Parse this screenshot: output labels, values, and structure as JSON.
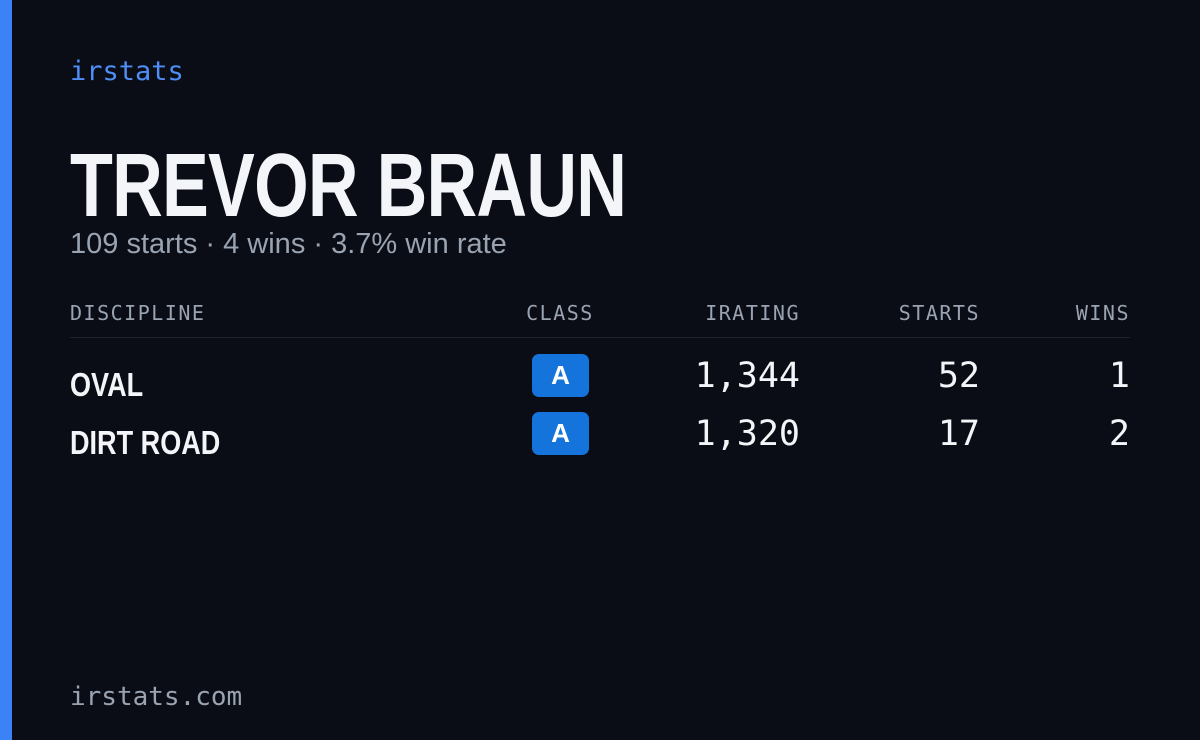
{
  "brand": "irstats",
  "profile": {
    "name": "TREVOR BRAUN",
    "summary": "109 starts · 4 wins · 3.7% win rate"
  },
  "table": {
    "headers": [
      "DISCIPLINE",
      "CLASS",
      "IRATING",
      "STARTS",
      "WINS"
    ],
    "rows": [
      [
        "OVAL",
        "A",
        "1,344",
        "52",
        "1"
      ],
      [
        "DIRT ROAD",
        "A",
        "1,320",
        "17",
        "2"
      ]
    ]
  },
  "footer": "irstats.com"
}
